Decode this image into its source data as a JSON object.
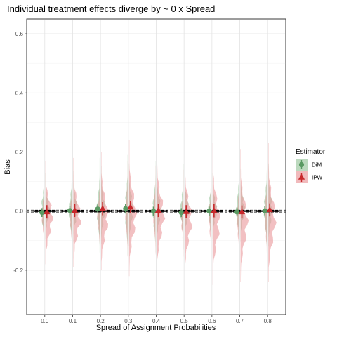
{
  "chart_data": {
    "type": "scatter",
    "title": "Individual treatment effects diverge by ~ 0 x Spread",
    "xlabel": "Spread of Assignment Probabilities",
    "ylabel": "Bias",
    "x": [
      0.0,
      0.1,
      0.2,
      0.3,
      0.4,
      0.5,
      0.6,
      0.7,
      0.8
    ],
    "x_tick_labels": [
      "0.0",
      "0.1",
      "0.2",
      "0.3",
      "0.4",
      "0.5",
      "0.6",
      "0.7",
      "0.8"
    ],
    "y_ticks": [
      -0.2,
      0.0,
      0.2,
      0.4,
      0.6
    ],
    "y_tick_labels": [
      "-0.2",
      "0.0",
      "0.2",
      "0.4",
      "0.6"
    ],
    "ylim": [
      -0.35,
      0.65
    ],
    "xlim": [
      -0.065,
      0.865
    ],
    "grid": true,
    "legend_title": "Estimator",
    "legend_position": "right",
    "series": [
      {
        "name": "DiM",
        "color": "#5a9a63",
        "fill": "#8fbf93",
        "marker": "circle",
        "means": [
          -0.005,
          0.002,
          0.007,
          0.008,
          0.0,
          -0.005,
          0.0,
          -0.003,
          0.001
        ],
        "error_low": [
          -0.02,
          -0.012,
          -0.008,
          -0.007,
          -0.015,
          -0.02,
          -0.015,
          -0.018,
          -0.014
        ],
        "error_high": [
          0.01,
          0.016,
          0.022,
          0.023,
          0.015,
          0.01,
          0.015,
          0.012,
          0.016
        ],
        "density_range": [
          [
            -0.12,
            0.15
          ],
          [
            -0.13,
            0.16
          ],
          [
            -0.14,
            0.18
          ],
          [
            -0.15,
            0.19
          ],
          [
            -0.14,
            0.17
          ],
          [
            -0.13,
            0.16
          ],
          [
            -0.12,
            0.15
          ],
          [
            -0.13,
            0.17
          ],
          [
            -0.15,
            0.19
          ]
        ]
      },
      {
        "name": "IPW",
        "color": "#c8282b",
        "fill": "#e88c90",
        "marker": "triangle",
        "means": [
          -0.003,
          0.002,
          0.008,
          0.013,
          0.002,
          -0.002,
          0.001,
          -0.003,
          0.004
        ],
        "error_low": [
          -0.025,
          -0.02,
          -0.014,
          -0.008,
          -0.02,
          -0.024,
          -0.021,
          -0.025,
          -0.018
        ],
        "error_high": [
          0.02,
          0.024,
          0.03,
          0.034,
          0.024,
          0.02,
          0.023,
          0.019,
          0.026
        ],
        "density_range": [
          [
            -0.18,
            0.17
          ],
          [
            -0.19,
            0.18
          ],
          [
            -0.2,
            0.2
          ],
          [
            -0.22,
            0.24
          ],
          [
            -0.21,
            0.22
          ],
          [
            -0.22,
            0.2
          ],
          [
            -0.25,
            0.23
          ],
          [
            -0.24,
            0.21
          ],
          [
            -0.24,
            0.23
          ]
        ]
      }
    ],
    "reference_line": 0.0
  }
}
